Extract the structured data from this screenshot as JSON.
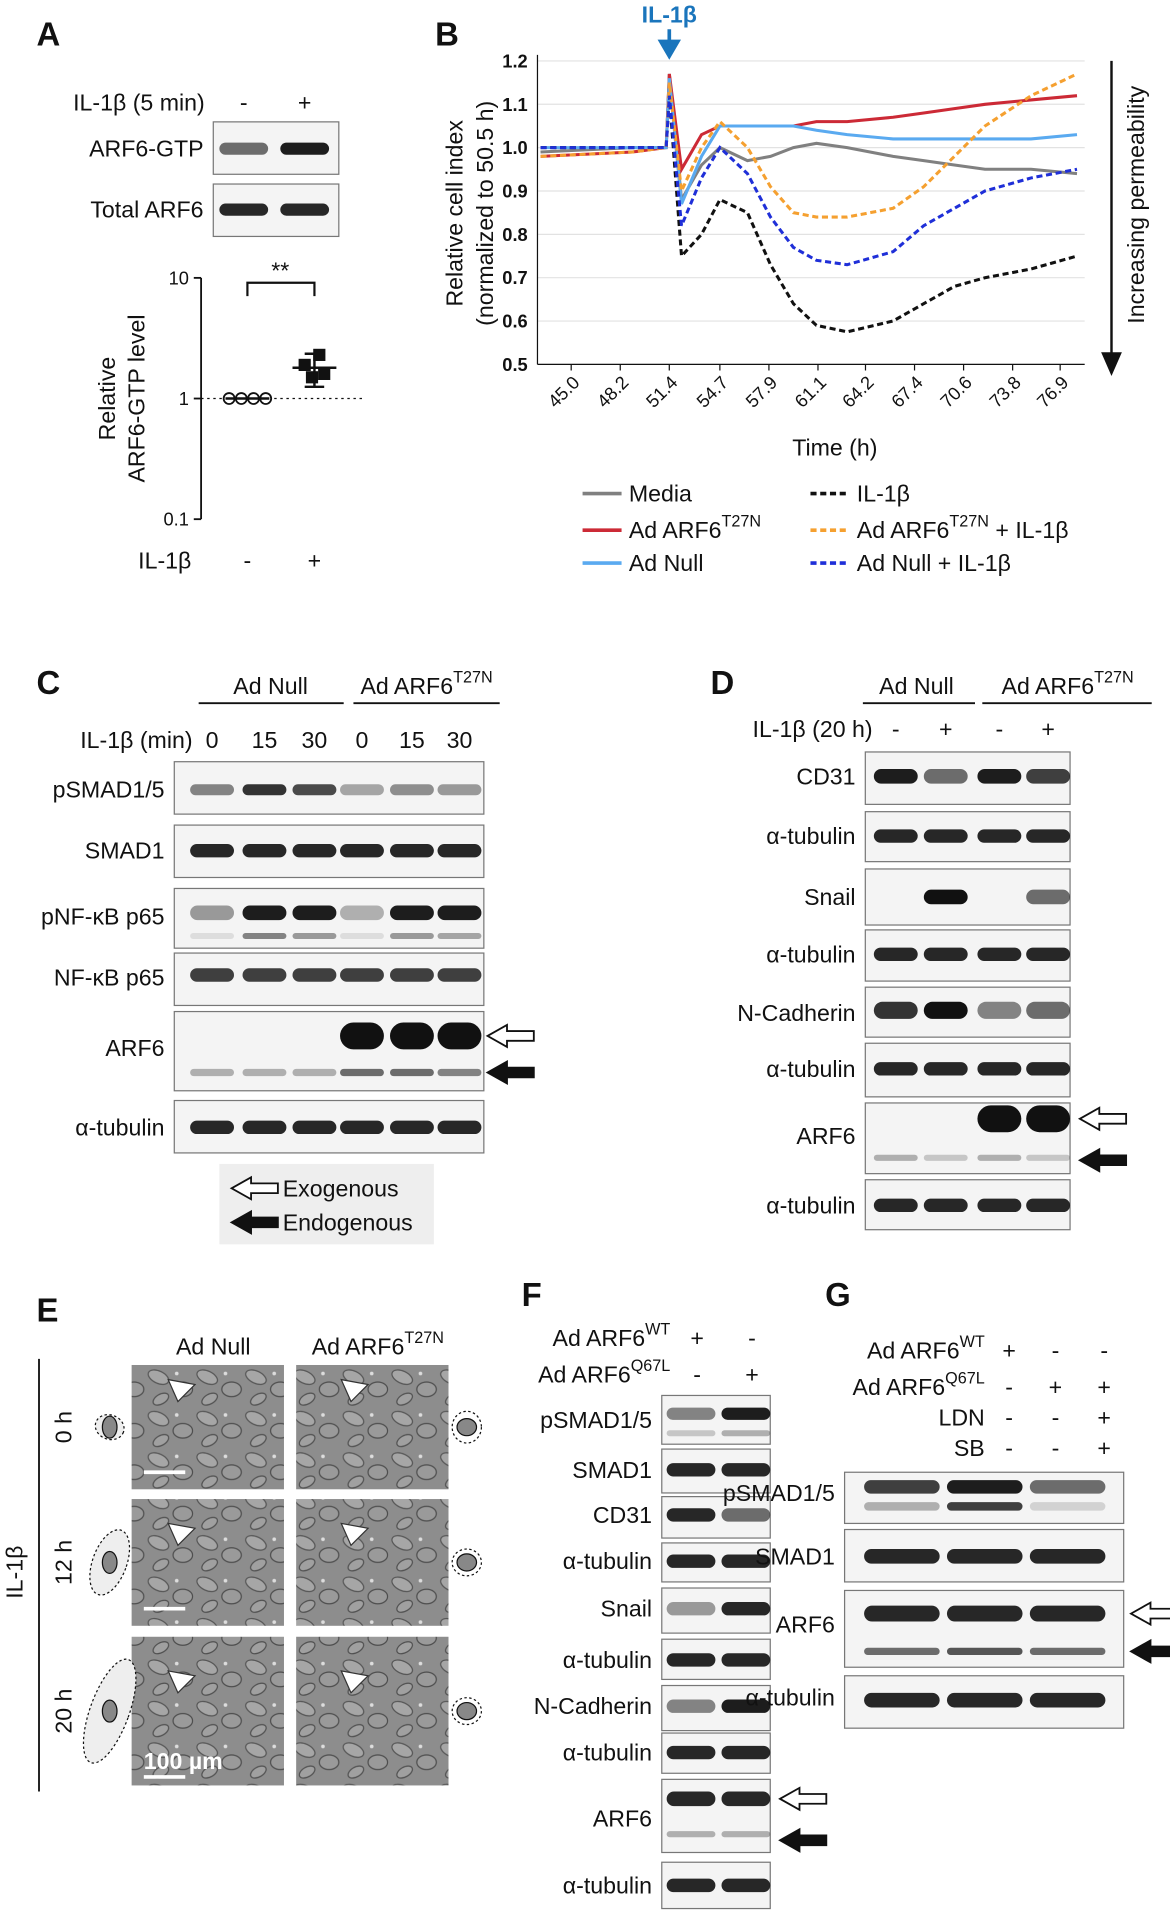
{
  "panels": {
    "a": {
      "label": "A",
      "treatment": "IL-1β (5 min)",
      "lanes": [
        "-",
        "+"
      ],
      "blots": [
        "ARF6-GTP",
        "Total ARF6"
      ]
    },
    "b": {
      "label": "B"
    },
    "c": {
      "label": "C",
      "groups": [
        {
          "name": "Ad Null"
        },
        {
          "name": "Ad ARF6",
          "sup": "T27N"
        }
      ],
      "treatment": "IL-1β (min)",
      "lanes": [
        "0",
        "15",
        "30",
        "0",
        "15",
        "30"
      ],
      "blots": [
        "pSMAD1/5",
        "SMAD1",
        "pNF-κB p65",
        "NF-κB p65",
        "ARF6",
        "α-tubulin"
      ],
      "arrow_legend": [
        "Exogenous",
        "Endogenous"
      ]
    },
    "d": {
      "label": "D",
      "groups": [
        {
          "name": "Ad Null"
        },
        {
          "name": "Ad ARF6",
          "sup": "T27N"
        }
      ],
      "treatment": "IL-1β (20 h)",
      "lanes": [
        "-",
        "+",
        "-",
        "+"
      ],
      "blots": [
        "CD31",
        "α-tubulin",
        "Snail",
        "α-tubulin",
        "N-Cadherin",
        "α-tubulin",
        "ARF6",
        "α-tubulin"
      ]
    },
    "e": {
      "label": "E",
      "columns": [
        {
          "name": "Ad Null"
        },
        {
          "name": "Ad ARF6",
          "sup": "T27N"
        }
      ],
      "rows": [
        "0 h",
        "12 h",
        "20 h"
      ],
      "treatment": "IL-1β",
      "scale_bar": "100 µm"
    },
    "f": {
      "label": "F",
      "treatments": [
        {
          "name": "Ad ARF6",
          "sup": "WT",
          "signs": [
            "+",
            "-"
          ]
        },
        {
          "name": "Ad ARF6",
          "sup": "Q67L",
          "signs": [
            "-",
            "+"
          ]
        }
      ],
      "blots": [
        "pSMAD1/5",
        "SMAD1",
        "CD31",
        "α-tubulin",
        "Snail",
        "α-tubulin",
        "N-Cadherin",
        "α-tubulin",
        "ARF6",
        "α-tubulin"
      ]
    },
    "g": {
      "label": "G",
      "treatments": [
        {
          "name": "Ad ARF6",
          "sup": "WT",
          "signs": [
            "+",
            "-",
            "-"
          ]
        },
        {
          "name": "Ad ARF6",
          "sup": "Q67L",
          "signs": [
            "-",
            "+",
            "+"
          ]
        },
        {
          "name": "LDN",
          "signs": [
            "-",
            "-",
            "+"
          ]
        },
        {
          "name": "SB",
          "signs": [
            "-",
            "-",
            "+"
          ]
        }
      ],
      "blots": [
        "pSMAD1/5",
        "SMAD1",
        "ARF6",
        "α-tubulin"
      ]
    }
  },
  "chart_data": [
    {
      "type": "scatter",
      "ylabel": [
        "Relative",
        "ARF6-GTP level"
      ],
      "xlabel": "IL-1β",
      "categories": [
        "-",
        "+"
      ],
      "log_scale": true,
      "ylim": [
        0.1,
        10
      ],
      "yticks": [
        0.1,
        1,
        10
      ],
      "reference_line": 1,
      "annotation": "**",
      "points": [
        [
          1,
          1,
          1,
          1
        ],
        [
          2.3,
          1.9,
          1.6,
          1.5
        ]
      ],
      "means": [
        1,
        1.8
      ],
      "errors": [
        0,
        0.55
      ]
    },
    {
      "type": "line",
      "ylabel": [
        "Relative cell index",
        "(normalized to 50.5 h)"
      ],
      "xlabel": "Time (h)",
      "treatment": "IL-1β",
      "treatment_x": 51.4,
      "direction": "Increasing permeability",
      "x": [
        43,
        49,
        51.2,
        51.4,
        52.2,
        53.5,
        54.7,
        56.5,
        58,
        59.5,
        61,
        63,
        66,
        68,
        70,
        72,
        75,
        78
      ],
      "xlim": [
        42.8,
        78.5
      ],
      "xticks": [
        {
          "value": 45,
          "label": "45.0"
        },
        48.2,
        51.4,
        54.7,
        57.9,
        61.1,
        64.2,
        67.4,
        70.6,
        73.8,
        76.9
      ],
      "ylim": [
        0.5,
        1.2
      ],
      "yticks": [
        0.5,
        0.6,
        0.7,
        0.8,
        0.9,
        {
          "value": 1,
          "label": "1.0"
        },
        1.1,
        1.2
      ],
      "grid": true,
      "series": [
        {
          "name": "Media",
          "color": "#808080",
          "dashed": false,
          "values": [
            0.99,
            1.0,
            1.0,
            1.17,
            0.88,
            0.96,
            1.0,
            0.97,
            0.98,
            1.0,
            1.01,
            1.0,
            0.98,
            0.97,
            0.96,
            0.95,
            0.95,
            0.94
          ]
        },
        {
          "name": "Ad ARF6",
          "name_sup": "T27N",
          "color": "#cc2a36",
          "dashed": false,
          "values": [
            0.98,
            0.99,
            1.0,
            1.17,
            0.95,
            1.03,
            1.05,
            1.05,
            1.05,
            1.05,
            1.06,
            1.06,
            1.07,
            1.08,
            1.09,
            1.1,
            1.11,
            1.12
          ]
        },
        {
          "name": "Ad Null",
          "color": "#5aaaf0",
          "dashed": false,
          "values": [
            1.0,
            1.0,
            1.0,
            1.16,
            0.87,
            0.98,
            1.05,
            1.05,
            1.05,
            1.05,
            1.04,
            1.03,
            1.02,
            1.02,
            1.02,
            1.02,
            1.02,
            1.03
          ]
        },
        {
          "name": "IL-1β",
          "color": "#111111",
          "dashed": true,
          "values": [
            1.0,
            1.0,
            1.0,
            1.12,
            0.75,
            0.8,
            0.88,
            0.85,
            0.73,
            0.64,
            0.59,
            0.575,
            0.6,
            0.64,
            0.68,
            0.7,
            0.72,
            0.75
          ]
        },
        {
          "name": "Ad ARF6",
          "name_sup": "T27N",
          "name_suffix": " + IL-1β",
          "color": "#f5a030",
          "dashed": true,
          "values": [
            0.98,
            0.99,
            1.0,
            1.15,
            0.9,
            1.0,
            1.06,
            1.0,
            0.91,
            0.85,
            0.84,
            0.84,
            0.86,
            0.91,
            0.98,
            1.05,
            1.12,
            1.17
          ]
        },
        {
          "name": "Ad Null + IL-1β",
          "color": "#1f2fd8",
          "dashed": true,
          "values": [
            1.0,
            1.0,
            1.0,
            1.12,
            0.82,
            0.93,
            1.0,
            0.94,
            0.84,
            0.77,
            0.74,
            0.73,
            0.76,
            0.82,
            0.86,
            0.9,
            0.93,
            0.95
          ]
        }
      ]
    }
  ]
}
